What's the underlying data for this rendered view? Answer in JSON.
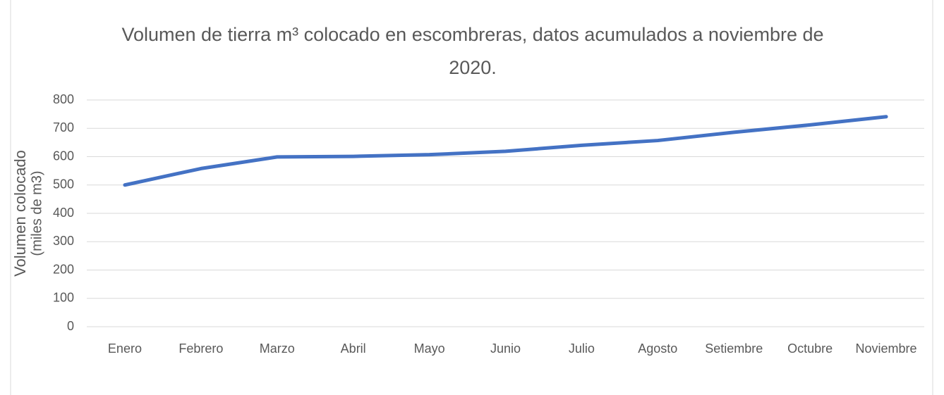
{
  "chart_data": {
    "type": "line",
    "title": "Volumen de tierra m³ colocado en escombreras, datos acumulados a noviembre de 2020.",
    "y_label": [
      "Volumen colocado",
      "(miles de m3)"
    ],
    "categories": [
      "Enero",
      "Febrero",
      "Marzo",
      "Abril",
      "Mayo",
      "Junio",
      "Julio",
      "Agosto",
      "Setiembre",
      "Octubre",
      "Noviembre"
    ],
    "series": [
      {
        "name": "Volumen colocado",
        "color": "#4472c4",
        "values": [
          500,
          558,
          599,
          601,
          607,
          619,
          640,
          657,
          686,
          712,
          741
        ]
      }
    ],
    "ylim": [
      0,
      800
    ],
    "yticks": [
      0,
      100,
      200,
      300,
      400,
      500,
      600,
      700,
      800
    ],
    "grid": true
  }
}
